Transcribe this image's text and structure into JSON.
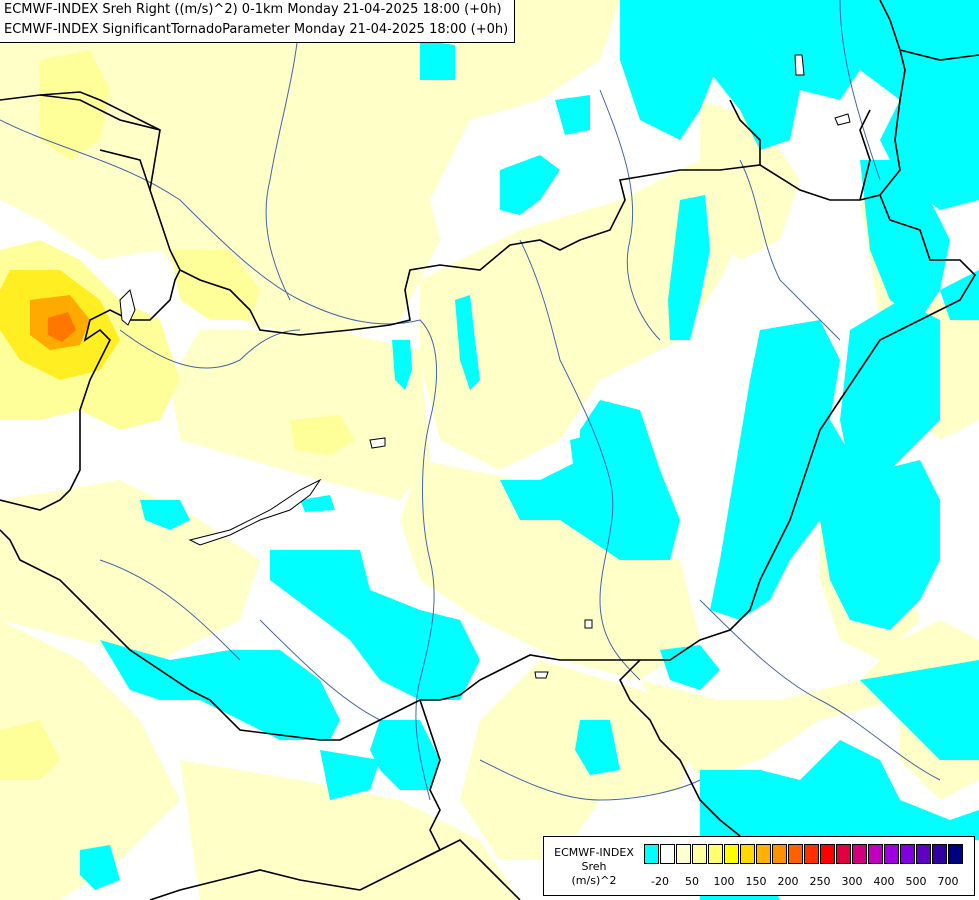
{
  "header": {
    "line1": "ECMWF-INDEX Sreh Right ((m/s)^2) 0-1km Monday 21-04-2025 18:00 (+0h)",
    "line2": "ECMWF-INDEX SignificantTornadoParameter Monday 21-04-2025 18:00 (+0h)"
  },
  "legend": {
    "title1": "ECMWF-INDEX",
    "title2": "Sreh",
    "title3": "(m/s)^2",
    "colors": [
      "#00ffff",
      "#ffffff",
      "#ffffd0",
      "#ffffa0",
      "#ffff70",
      "#ffff00",
      "#ffd800",
      "#ffb000",
      "#ff9000",
      "#ff6000",
      "#ff3000",
      "#ff0000",
      "#e00040",
      "#d00080",
      "#c000c0",
      "#a000e0",
      "#8000e0",
      "#6000c0",
      "#3000a0",
      "#000080"
    ],
    "ticks": [
      "-20",
      "50",
      "100",
      "150",
      "200",
      "250",
      "300",
      "400",
      "500",
      "700"
    ]
  },
  "map": {
    "colors": {
      "cyan": "#00ffff",
      "pale_yellow": "#ffffc8",
      "light_yellow": "#ffff99",
      "yellow": "#ffee22",
      "orange": "#ffaa00",
      "dark_orange": "#ff7700",
      "border": "#000000",
      "river": "#4466aa"
    }
  }
}
